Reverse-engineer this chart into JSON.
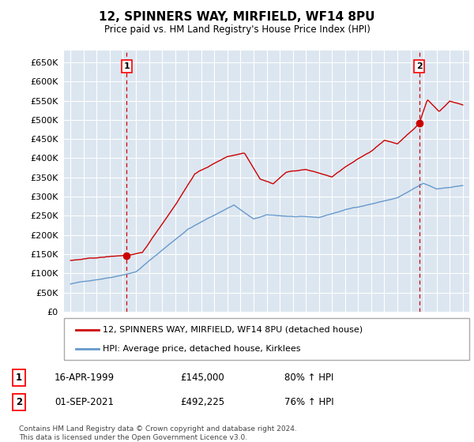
{
  "title": "12, SPINNERS WAY, MIRFIELD, WF14 8PU",
  "subtitle": "Price paid vs. HM Land Registry's House Price Index (HPI)",
  "legend_line1": "12, SPINNERS WAY, MIRFIELD, WF14 8PU (detached house)",
  "legend_line2": "HPI: Average price, detached house, Kirklees",
  "sale1_date": "16-APR-1999",
  "sale1_price": "£145,000",
  "sale1_hpi": "80% ↑ HPI",
  "sale1_year": 1999.29,
  "sale1_value": 145000,
  "sale2_date": "01-SEP-2021",
  "sale2_price": "£492,225",
  "sale2_hpi": "76% ↑ HPI",
  "sale2_year": 2021.67,
  "sale2_value": 492225,
  "footer": "Contains HM Land Registry data © Crown copyright and database right 2024.\nThis data is licensed under the Open Government Licence v3.0.",
  "red_color": "#cc0000",
  "blue_color": "#6699cc",
  "plot_bg": "#dce6f0",
  "grid_color": "#ffffff",
  "ylim": [
    0,
    680000
  ],
  "yticks": [
    0,
    50000,
    100000,
    150000,
    200000,
    250000,
    300000,
    350000,
    400000,
    450000,
    500000,
    550000,
    600000,
    650000
  ],
  "xlim_start": 1994.5,
  "xlim_end": 2025.5
}
